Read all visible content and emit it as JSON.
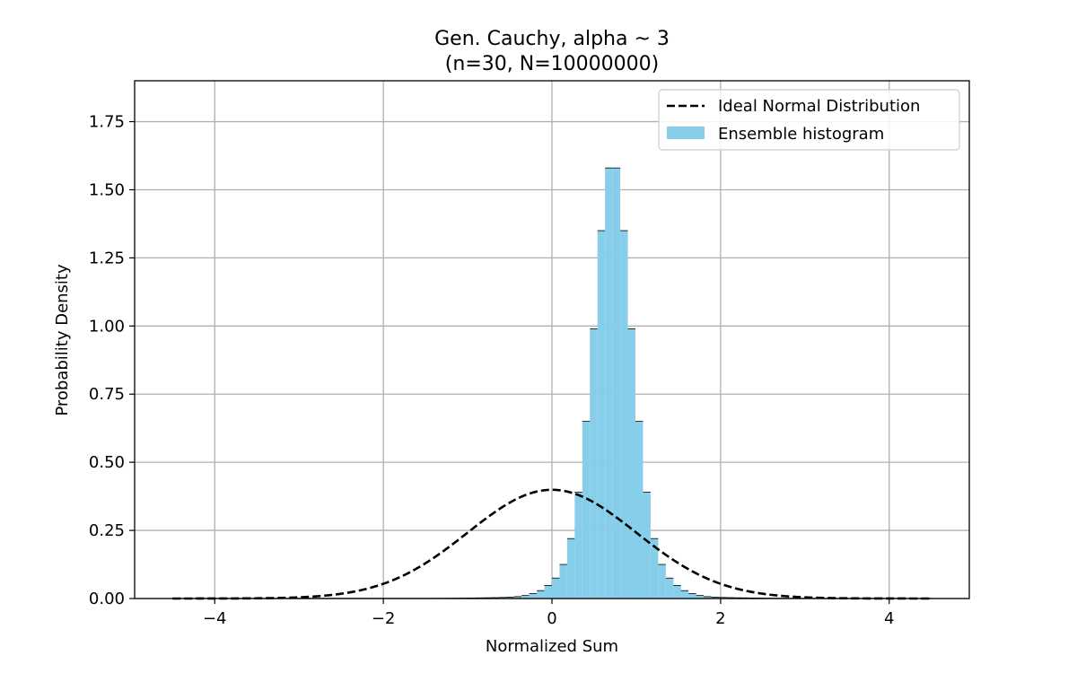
{
  "chart_data": {
    "type": "bar",
    "title": "Gen. Cauchy, alpha ~ 3",
    "subtitle": "(n=30, N=10000000)",
    "xlabel": "Normalized Sum",
    "ylabel": "Probability Density",
    "xlim": [
      -4.95,
      4.95
    ],
    "ylim": [
      0,
      1.9
    ],
    "xticks": [
      -4,
      -2,
      0,
      2,
      4
    ],
    "xtick_labels": [
      "−4",
      "−2",
      "0",
      "2",
      "4"
    ],
    "yticks": [
      0,
      0.25,
      0.5,
      0.75,
      1.0,
      1.25,
      1.5,
      1.75
    ],
    "ytick_labels": [
      "0.00",
      "0.25",
      "0.50",
      "0.75",
      "1.00",
      "1.25",
      "1.50",
      "1.75"
    ],
    "grid": true,
    "legend_position": "top-right",
    "legend": [
      {
        "label": "Ideal Normal Distribution",
        "style": "dashed-line",
        "color": "#000000"
      },
      {
        "label": "Ensemble histogram",
        "style": "patch",
        "color": "#87ceeb"
      }
    ],
    "histogram": {
      "bin_start": -4.5,
      "bin_width": 0.09,
      "bar_color": "#87ceeb",
      "edge_color": "#000000",
      "values": [
        0.0008,
        0.0008,
        0.0008,
        0.0008,
        0.0008,
        0.0008,
        0.0008,
        0.0008,
        0.0008,
        0.0008,
        0.0008,
        0.0008,
        0.0008,
        0.0008,
        0.0008,
        0.0008,
        0.0008,
        0.0008,
        0.0008,
        0.0008,
        0.0008,
        0.0008,
        0.0008,
        0.0008,
        0.0008,
        0.0008,
        0.0008,
        0.0008,
        0.0008,
        0.0008,
        0.0008,
        0.0008,
        0.0008,
        0.0008,
        0.0009,
        0.001,
        0.0012,
        0.0014,
        0.0017,
        0.002,
        0.0024,
        0.0028,
        0.0033,
        0.004,
        0.005,
        0.007,
        0.011,
        0.018,
        0.029,
        0.048,
        0.075,
        0.125,
        0.22,
        0.39,
        0.65,
        0.99,
        1.35,
        1.58,
        1.58,
        1.35,
        0.99,
        0.65,
        0.39,
        0.22,
        0.125,
        0.075,
        0.048,
        0.029,
        0.018,
        0.011,
        0.007,
        0.005,
        0.004,
        0.0033,
        0.0028,
        0.0024,
        0.002,
        0.0017,
        0.0014,
        0.0012,
        0.001,
        0.0009,
        0.0008,
        0.0008,
        0.0008,
        0.0008,
        0.0008,
        0.0008,
        0.0008,
        0.0008,
        0.0008,
        0.0008,
        0.0008,
        0.0008,
        0.0008,
        0.0008,
        0.0008,
        0.0008,
        0.0008,
        0.0008
      ]
    },
    "normal_curve": {
      "mean": 0,
      "std": 1,
      "x_range": [
        -4.5,
        4.5
      ],
      "peak_value": 0.3989,
      "color": "#000000",
      "style": "dashed"
    }
  }
}
